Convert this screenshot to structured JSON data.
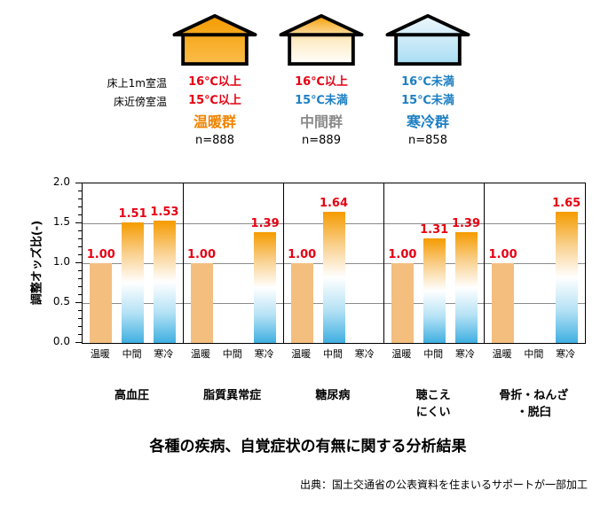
{
  "legend": {
    "row_labels": [
      "床上1m室温",
      "床近傍室温"
    ],
    "groups": [
      {
        "house_icon": "warm-house-icon",
        "house_gradient": [
          "#F49B00",
          "#FBBD4B"
        ],
        "temps": [
          {
            "text": "16℃以上",
            "color": "#E60012"
          },
          {
            "text": "15℃以上",
            "color": "#E60012"
          }
        ],
        "name": "温暖群",
        "name_color": "#F08300",
        "n": "n=888"
      },
      {
        "house_icon": "intermediate-house-icon",
        "house_gradient": [
          "#F59C00",
          "#FDEBC4",
          "#FFFFFF"
        ],
        "temps": [
          {
            "text": "16℃以上",
            "color": "#E60012"
          },
          {
            "text": "15℃未満",
            "color": "#1B7FC3"
          }
        ],
        "name": "中間群",
        "name_color": "#8A8A8A",
        "n": "n=889"
      },
      {
        "house_icon": "cold-house-icon",
        "house_gradient": [
          "#EFF8FC",
          "#A9DDF4"
        ],
        "temps": [
          {
            "text": "16℃未満",
            "color": "#1B7FC3"
          },
          {
            "text": "15℃未満",
            "color": "#1B7FC3"
          }
        ],
        "name": "寒冷群",
        "name_color": "#1B7FC3",
        "n": "n=858"
      }
    ]
  },
  "chart_data": {
    "type": "bar",
    "title": "各種の疾病、自覚症状の有無に関する分析結果",
    "ylabel": "調整オッズ比(-)",
    "ylim": [
      0.0,
      2.0
    ],
    "ytick_labels": [
      "0.0",
      "0.5",
      "1.0",
      "1.5",
      "2.0"
    ],
    "grid_values": [
      0.5,
      1.0,
      1.5
    ],
    "grid_color": "#8C8C8C",
    "value_label_color": "#E60012",
    "series": [
      {
        "name": "温暖",
        "fill": {
          "type": "solid",
          "color": "#F3BE7E"
        }
      },
      {
        "name": "中間",
        "fill": {
          "type": "gradient",
          "stops": [
            "#F59B00",
            "#F9CF8B",
            "#FFFFFF",
            "#B5E2F5",
            "#3FAFE1"
          ]
        }
      },
      {
        "name": "寒冷",
        "fill": {
          "type": "gradient",
          "stops": [
            "#F59B00",
            "#F9CF8B",
            "#FFFFFF",
            "#B5E2F5",
            "#3FAFE1"
          ]
        }
      }
    ],
    "groups": [
      {
        "category": "高血圧",
        "values": [
          1.0,
          1.51,
          1.53
        ]
      },
      {
        "category": "脂質異常症",
        "values": [
          1.0,
          null,
          1.39
        ]
      },
      {
        "category": "糖尿病",
        "values": [
          1.0,
          1.64,
          null
        ]
      },
      {
        "category": "聴こえ\nにくい",
        "values": [
          1.0,
          1.31,
          1.39
        ]
      },
      {
        "category": "骨折・ねんざ\n・脱臼",
        "values": [
          1.0,
          null,
          1.65
        ]
      }
    ]
  },
  "source": "出典：国土交通省の公表資料を住まいるサポートが一部加工"
}
